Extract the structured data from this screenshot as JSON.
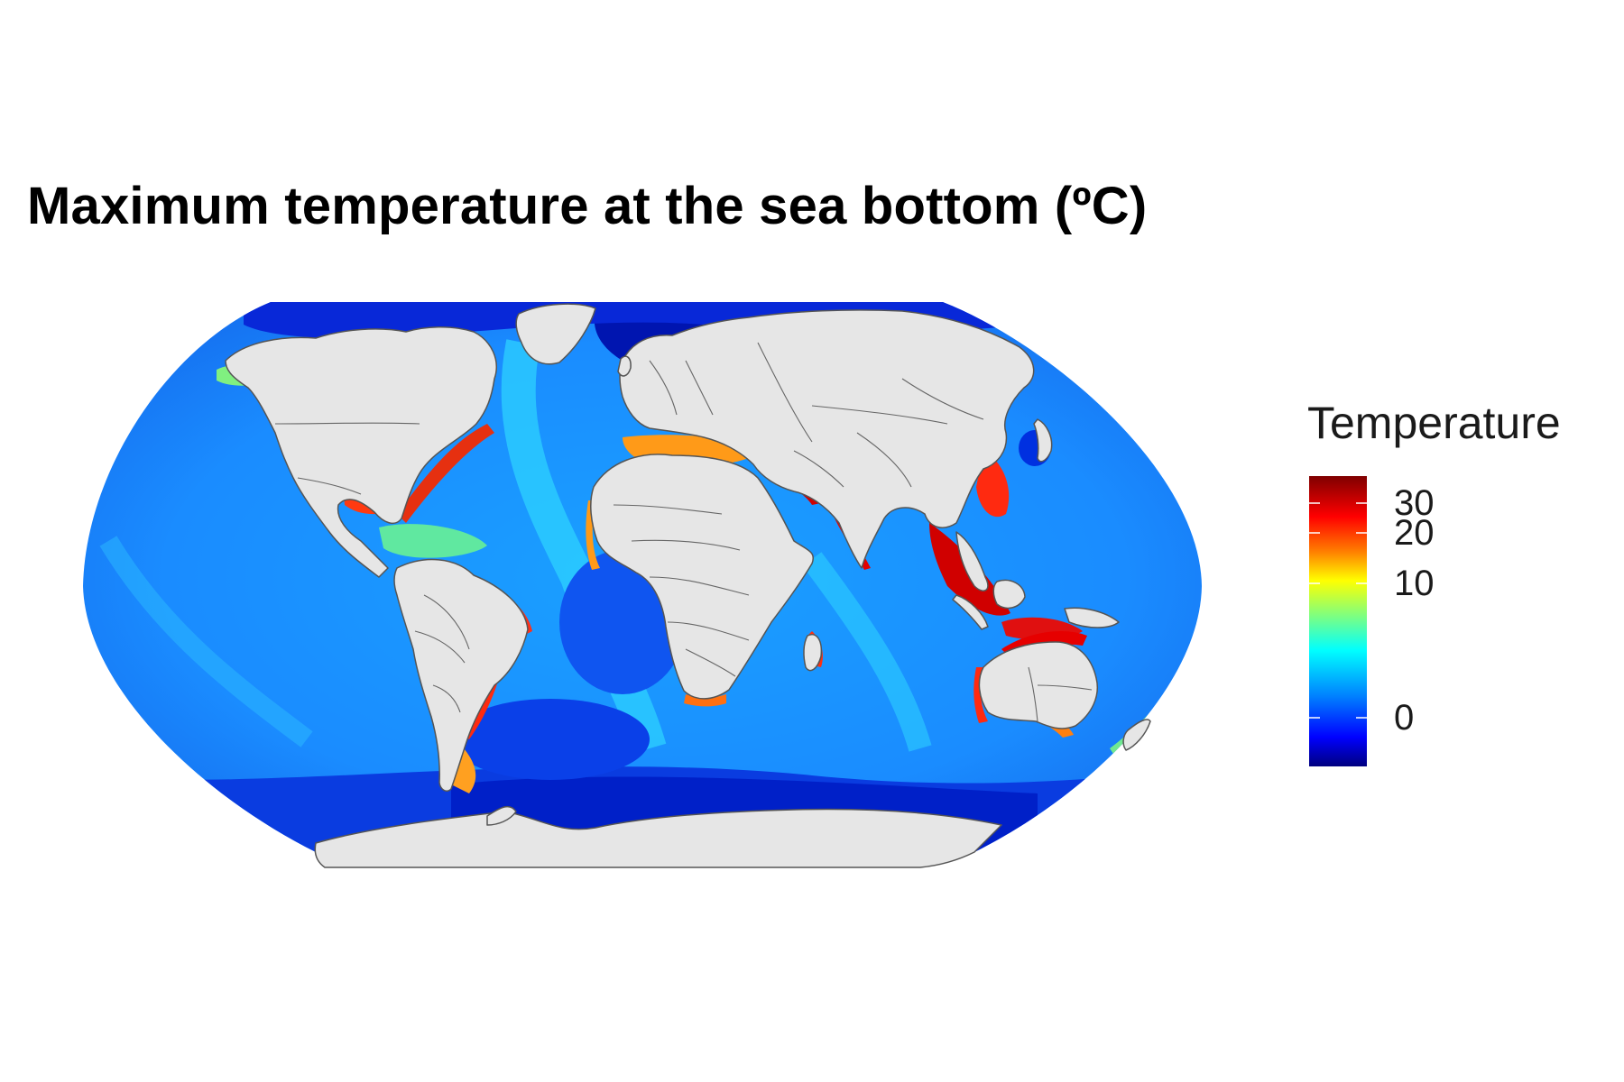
{
  "title": "Maximum temperature at the sea bottom (ºC)",
  "legend": {
    "title": "Temperature",
    "ticks": [
      {
        "label": "30",
        "value": 30
      },
      {
        "label": "20",
        "value": 20
      },
      {
        "label": "10",
        "value": 10
      },
      {
        "label": "0",
        "value": 0
      }
    ],
    "colors": [
      "#00007f",
      "#0000ff",
      "#007fff",
      "#00ffff",
      "#7fff7f",
      "#ffff00",
      "#ff7f00",
      "#ff0000",
      "#7f0000"
    ]
  },
  "map": {
    "projection": "Robinson",
    "land_color": "#e6e6e6",
    "border_color": "#555555",
    "deep_ocean_color": "#1a8cff",
    "cold_color": "#0033e6",
    "warm_shelf_color": "#e60000",
    "mediterranean_color": "#ff9920"
  }
}
